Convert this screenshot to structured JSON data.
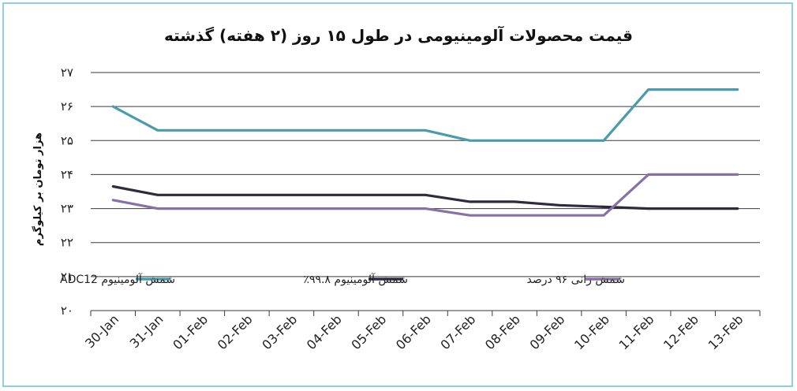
{
  "chart_data": {
    "type": "line",
    "title": "قیمت محصولات آلومینیومی در طول ۱۵ روز (۲ هفته) گذشته",
    "ylabel": "هزار تومان بر کیلوگرم",
    "xlabel": "",
    "ylim": [
      20,
      27
    ],
    "yticks": [
      "۲۰",
      "۲۱",
      "۲۲",
      "۲۳",
      "۲۴",
      "۲۵",
      "۲۶",
      "۲۷"
    ],
    "grid": true,
    "legend": "inside-bottom",
    "categories": [
      "30-Jan",
      "31-Jan",
      "01-Feb",
      "02-Feb",
      "03-Feb",
      "04-Feb",
      "05-Feb",
      "06-Feb",
      "07-Feb",
      "08-Feb",
      "09-Feb",
      "10-Feb",
      "11-Feb",
      "12-Feb",
      "13-Feb"
    ],
    "series": [
      {
        "name": "شمش آلومینیوم ADC12",
        "color": "#4a9bab",
        "values": [
          26.0,
          25.3,
          25.3,
          25.3,
          25.3,
          25.3,
          25.3,
          25.3,
          25.0,
          25.0,
          25.0,
          25.0,
          26.5,
          26.5,
          26.5
        ]
      },
      {
        "name": "شمش آلومینیوم ۹۹.۸٪",
        "color": "#2f2a40",
        "values": [
          23.65,
          23.4,
          23.4,
          23.4,
          23.4,
          23.4,
          23.4,
          23.4,
          23.2,
          23.2,
          23.1,
          23.05,
          23.0,
          23.0,
          23.0
        ]
      },
      {
        "name": "شمش رانی ۹۶ درصد",
        "color": "#8870a8",
        "values": [
          23.25,
          23.0,
          23.0,
          23.0,
          23.0,
          23.0,
          23.0,
          23.0,
          22.8,
          22.8,
          22.8,
          22.8,
          24.0,
          24.0,
          24.0
        ]
      }
    ]
  }
}
